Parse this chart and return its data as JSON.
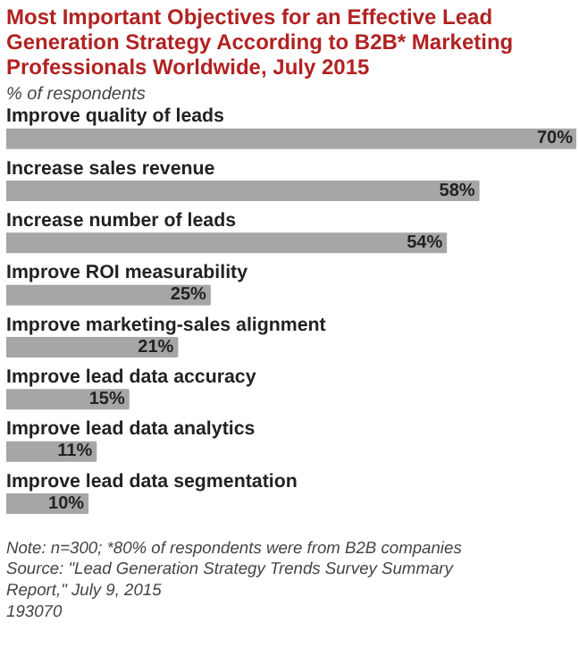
{
  "chart_data": {
    "type": "bar",
    "orientation": "horizontal",
    "title": "Most Important Objectives for an Effective Lead Generation Strategy According to B2B* Marketing Professionals Worldwide, July 2015",
    "subtitle": "% of respondents",
    "categories": [
      "Improve quality of leads",
      "Increase sales revenue",
      "Increase number of leads",
      "Improve ROI measurability",
      "Improve marketing-sales alignment",
      "Improve lead data accuracy",
      "Improve lead data analytics",
      "Improve lead data segmentation"
    ],
    "values": [
      70,
      58,
      54,
      25,
      21,
      15,
      11,
      10
    ],
    "value_labels": [
      "70%",
      "58%",
      "54%",
      "25%",
      "21%",
      "15%",
      "11%",
      "10%"
    ],
    "color": "#a6a6a6",
    "annotations": [
      "Note: n=300; *80% of respondents were from B2B companies",
      "Source: \"Lead Generation Strategy Trends Survey Summary",
      "Report,\" July 9, 2015",
      "193070"
    ]
  }
}
